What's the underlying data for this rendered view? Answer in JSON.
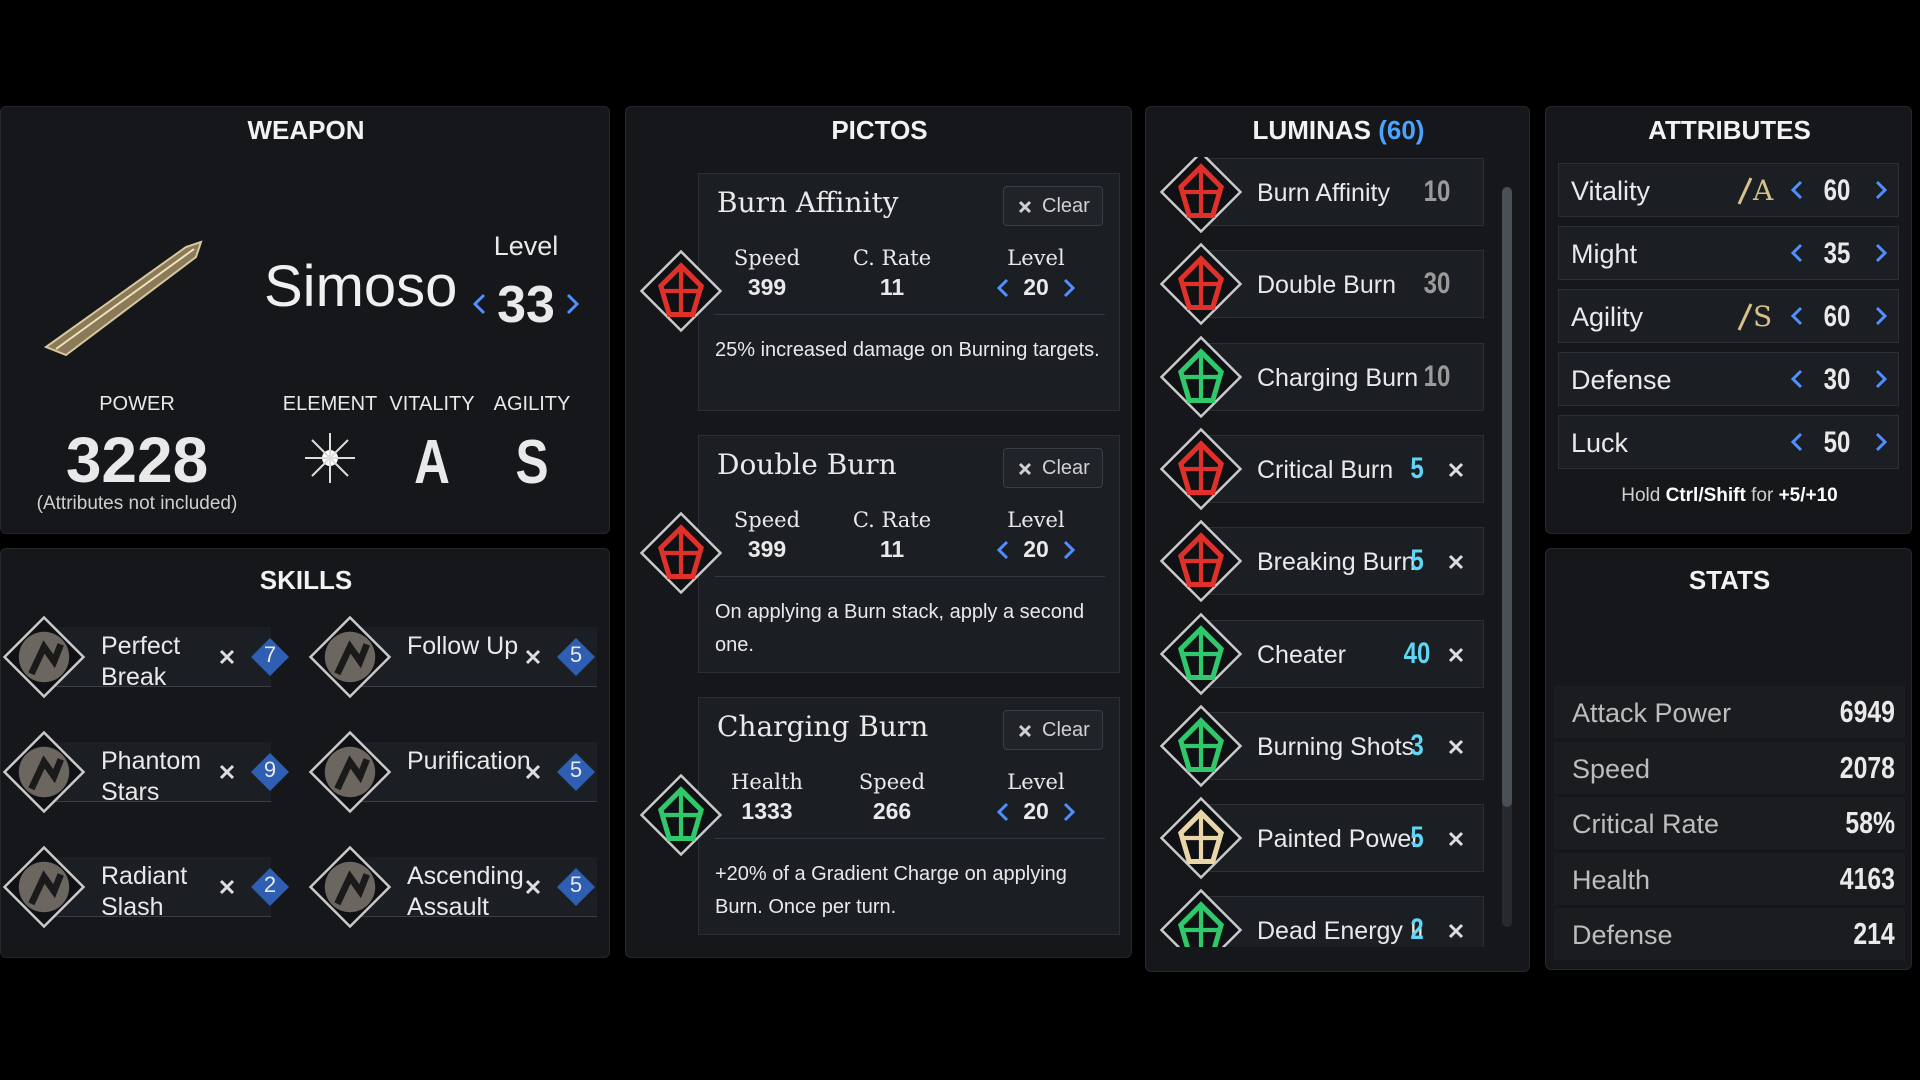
{
  "weapon": {
    "header": "WEAPON",
    "name": "Simoso",
    "level_label": "Level",
    "level": 33,
    "power_label": "POWER",
    "power": 3228,
    "power_note": "(Attributes not included)",
    "element_label": "ELEMENT",
    "vitality_label": "VITALITY",
    "agility_label": "AGILITY",
    "vitality": "A",
    "agility": "S"
  },
  "skills": {
    "header": "SKILLS",
    "items": [
      {
        "name": "Perfect Break",
        "cost": 7
      },
      {
        "name": "Follow Up",
        "cost": 5
      },
      {
        "name": "Phantom Stars",
        "cost": 9
      },
      {
        "name": "Purification",
        "cost": 5
      },
      {
        "name": "Radiant Slash",
        "cost": 2
      },
      {
        "name": "Ascending Assault",
        "cost": 5
      }
    ]
  },
  "pictos": {
    "header": "PICTOS",
    "clear_label": "Clear",
    "level_label": "Level",
    "items": [
      {
        "name": "Burn Affinity",
        "stats": [
          {
            "label": "Speed",
            "value": 399
          },
          {
            "label": "C. Rate",
            "value": 11
          }
        ],
        "level": 20,
        "description": "25% increased damage on Burning targets."
      },
      {
        "name": "Double Burn",
        "stats": [
          {
            "label": "Speed",
            "value": 399
          },
          {
            "label": "C. Rate",
            "value": 11
          }
        ],
        "level": 20,
        "description": "On applying a Burn stack, apply a second one."
      },
      {
        "name": "Charging Burn",
        "stats": [
          {
            "label": "Health",
            "value": 1333
          },
          {
            "label": "Speed",
            "value": 266
          }
        ],
        "level": 20,
        "description": "+20% of a Gradient Charge on applying Burn. Once per turn."
      }
    ]
  },
  "luminas": {
    "header": "LUMINAS",
    "points": "(60)",
    "items": [
      {
        "name": "Burn Affinity",
        "cost": 10,
        "equipped": false
      },
      {
        "name": "Double Burn",
        "cost": 30,
        "equipped": false
      },
      {
        "name": "Charging Burn",
        "cost": 10,
        "equipped": false
      },
      {
        "name": "Critical Burn",
        "cost": 5,
        "equipped": true
      },
      {
        "name": "Breaking Burn",
        "cost": 5,
        "equipped": true
      },
      {
        "name": "Cheater",
        "cost": 40,
        "equipped": true
      },
      {
        "name": "Burning Shots",
        "cost": 3,
        "equipped": true
      },
      {
        "name": "Painted Power",
        "cost": 5,
        "equipped": true
      },
      {
        "name": "Dead Energy II",
        "cost": 2,
        "equipped": true
      }
    ]
  },
  "attributes": {
    "header": "ATTRIBUTES",
    "items": [
      {
        "name": "Vitality",
        "grade": "A",
        "value": 60
      },
      {
        "name": "Might",
        "grade": null,
        "value": 35
      },
      {
        "name": "Agility",
        "grade": "S",
        "value": 60
      },
      {
        "name": "Defense",
        "grade": null,
        "value": 30
      },
      {
        "name": "Luck",
        "grade": null,
        "value": 50
      }
    ],
    "hint_prefix": "Hold",
    "hint_keys": "Ctrl/Shift",
    "hint_mid": "for",
    "hint_amounts": "+5/+10"
  },
  "stats": {
    "header": "STATS",
    "items": [
      {
        "name": "Attack Power",
        "value": "6949"
      },
      {
        "name": "Speed",
        "value": "2078"
      },
      {
        "name": "Critical Rate",
        "value": "58%"
      },
      {
        "name": "Health",
        "value": "4163"
      },
      {
        "name": "Defense",
        "value": "214"
      }
    ]
  }
}
